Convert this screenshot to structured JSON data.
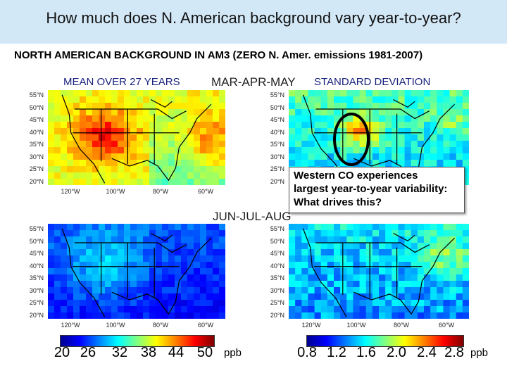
{
  "title": "How much does N. American background vary year-to-year?",
  "subtitle": "NORTH AMERICAN BACKGROUND IN AM3 (ZERO N. Amer. emissions 1981-2007)",
  "mean_label": "MEAN OVER 27 YEARS",
  "std_label": "STANDARD DEVIATION",
  "season_spring": "MAR-APR-MAY",
  "season_summer": "JUN-JUL-AUG",
  "callout_text": [
    "Western CO experiences",
    "largest year-to-year variability:",
    "What drives this?"
  ],
  "lat_labels": [
    "55°N",
    "50°N",
    "45°N",
    "40°N",
    "35°N",
    "30°N",
    "25°N",
    "20°N"
  ],
  "lon_labels": [
    "120°W",
    "100°W",
    "80°W",
    "60°W"
  ],
  "colorbar_mean": {
    "ticks": [
      "20",
      "26",
      "32",
      "38",
      "44",
      "50"
    ],
    "unit": "ppb"
  },
  "colorbar_std": {
    "ticks": [
      "0.8",
      "1.2",
      "1.6",
      "2.0",
      "2.4",
      "2.8"
    ],
    "unit": "ppb"
  },
  "colors": {
    "title_bg": "#d3e8f7",
    "label_blue": "#1a237e"
  }
}
